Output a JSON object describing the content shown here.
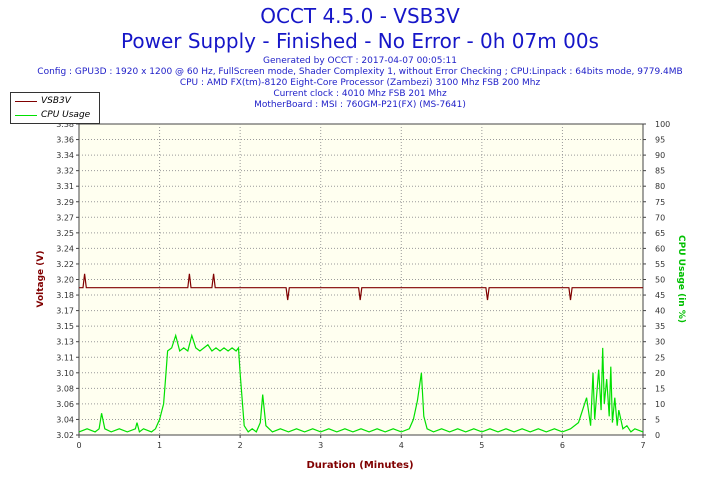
{
  "header": {
    "title": "OCCT 4.5.0 - VSB3V",
    "subtitle": "Power Supply - Finished - No Error - 0h 07m 00s",
    "info_lines": [
      "Generated by OCCT : 2017-04-07 00:05:11",
      "Config : GPU3D : 1920 x 1200 @ 60 Hz, FullScreen mode, Shader Complexity 1, without Error Checking ; CPU:Linpack : 64bits mode, 9779.4MB",
      "CPU : AMD FX(tm)-8120 Eight-Core Processor (Zambezi) 3100 Mhz FSB 200 Mhz",
      "Current clock : 4010 Mhz FSB 201 Mhz",
      "MotherBoard : MSI : 760GM-P21(FX) (MS-7641)"
    ]
  },
  "colors": {
    "voltage": "#800000",
    "cpu_usage": "#00e000",
    "plot_bg": "#fffff0",
    "grid": "#9a9a9a",
    "axis_label": "#800000",
    "right_axis_label": "#00c000"
  },
  "legend": {
    "items": [
      {
        "name": "VSB3V",
        "color": "#800000"
      },
      {
        "name": "CPU Usage",
        "color": "#00e000"
      }
    ],
    "position": "top-left"
  },
  "chart_data": {
    "type": "line",
    "xlabel": "Duration (Minutes)",
    "ylabel": "Voltage (V)",
    "y2label": "CPU Usage (in %)",
    "xlim": [
      0,
      7
    ],
    "ylim": [
      3.02,
      3.4
    ],
    "y2lim": [
      0,
      100
    ],
    "x_ticks": [
      "0",
      "1",
      "2",
      "3",
      "4",
      "5",
      "6",
      "7"
    ],
    "y_ticks": [
      "3.02",
      "3.04",
      "3.06",
      "3.08",
      "3.10",
      "3.11",
      "3.13",
      "3.15",
      "3.17",
      "3.18",
      "3.20",
      "3.22",
      "3.24",
      "3.25",
      "3.27",
      "3.29",
      "3.31",
      "3.32",
      "3.34",
      "3.36",
      "3.38"
    ],
    "y2_ticks": [
      "0",
      "5",
      "10",
      "15",
      "20",
      "25",
      "30",
      "35",
      "40",
      "45",
      "50",
      "55",
      "60",
      "65",
      "70",
      "75",
      "80",
      "85",
      "90",
      "95",
      "100"
    ],
    "grid": true,
    "series": [
      {
        "name": "VSB3V",
        "axis": "left",
        "x": [
          0,
          0.05,
          0.07,
          0.09,
          1.35,
          1.37,
          1.39,
          1.65,
          1.67,
          1.69,
          2.57,
          2.59,
          2.61,
          3.47,
          3.49,
          3.51,
          5.05,
          5.07,
          5.09,
          6.08,
          6.1,
          6.12,
          7.0
        ],
        "values": [
          3.2,
          3.2,
          3.217,
          3.2,
          3.2,
          3.217,
          3.2,
          3.2,
          3.217,
          3.2,
          3.2,
          3.185,
          3.2,
          3.2,
          3.185,
          3.2,
          3.2,
          3.185,
          3.2,
          3.2,
          3.185,
          3.2,
          3.2
        ]
      },
      {
        "name": "CPU Usage",
        "axis": "right",
        "x": [
          0,
          0.1,
          0.2,
          0.25,
          0.28,
          0.32,
          0.4,
          0.5,
          0.6,
          0.7,
          0.72,
          0.75,
          0.8,
          0.9,
          0.95,
          1.0,
          1.05,
          1.08,
          1.1,
          1.15,
          1.2,
          1.25,
          1.3,
          1.35,
          1.4,
          1.45,
          1.5,
          1.55,
          1.6,
          1.65,
          1.7,
          1.75,
          1.8,
          1.85,
          1.9,
          1.95,
          1.98,
          2.0,
          2.05,
          2.1,
          2.15,
          2.2,
          2.25,
          2.28,
          2.32,
          2.4,
          2.5,
          2.6,
          2.7,
          2.8,
          2.9,
          3.0,
          3.1,
          3.2,
          3.3,
          3.4,
          3.5,
          3.6,
          3.7,
          3.8,
          3.9,
          4.0,
          4.1,
          4.15,
          4.2,
          4.25,
          4.28,
          4.32,
          4.4,
          4.5,
          4.6,
          4.7,
          4.8,
          4.9,
          5.0,
          5.1,
          5.2,
          5.3,
          5.4,
          5.5,
          5.6,
          5.7,
          5.8,
          5.9,
          6.0,
          6.1,
          6.2,
          6.3,
          6.35,
          6.38,
          6.4,
          6.45,
          6.48,
          6.5,
          6.52,
          6.55,
          6.58,
          6.6,
          6.62,
          6.65,
          6.68,
          6.7,
          6.75,
          6.8,
          6.85,
          6.9,
          7.0
        ],
        "values": [
          1,
          2,
          1,
          2,
          7,
          2,
          1,
          2,
          1,
          2,
          4,
          1,
          2,
          1,
          2,
          5,
          10,
          20,
          27,
          28,
          32,
          27,
          28,
          27,
          32,
          28,
          27,
          28,
          29,
          27,
          28,
          27,
          28,
          27,
          28,
          27,
          28,
          20,
          3,
          1,
          2,
          1,
          4,
          13,
          3,
          1,
          2,
          1,
          2,
          1,
          2,
          1,
          2,
          1,
          2,
          1,
          2,
          1,
          2,
          1,
          2,
          1,
          2,
          5,
          11,
          20,
          6,
          2,
          1,
          2,
          1,
          2,
          1,
          2,
          1,
          2,
          1,
          2,
          1,
          2,
          1,
          2,
          1,
          2,
          1,
          2,
          4,
          12,
          3,
          20,
          5,
          21,
          8,
          28,
          10,
          18,
          6,
          22,
          4,
          12,
          3,
          8,
          2,
          3,
          1,
          2,
          1
        ]
      }
    ]
  }
}
